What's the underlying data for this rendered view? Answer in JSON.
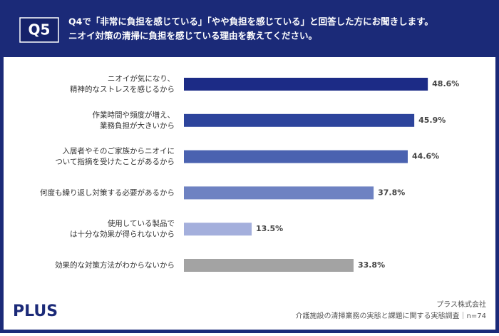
{
  "header": {
    "badge": "Q5",
    "title_lines": [
      "Q4で「非常に負担を感じている」「やや負担を感じている」と回答した方にお聞きします。",
      "ニオイ対策の清掃に負担を感じている理由を教えてください。"
    ]
  },
  "chart_data": {
    "type": "hbar",
    "categories": [
      [
        "ニオイが気になり、",
        "精神的なストレスを感じるから"
      ],
      [
        "作業時間や頻度が増え、",
        "業務負担が大きいから"
      ],
      [
        "入居者やそのご家族からニオイに",
        "ついて指摘を受けたことがあるから"
      ],
      [
        "何度も繰り返し対策する必要があるから"
      ],
      [
        "使用している製品で",
        "は十分な効果が得られないから"
      ],
      [
        "効果的な対策方法がわからないから"
      ]
    ],
    "values": [
      48.6,
      45.9,
      44.6,
      37.8,
      13.5,
      33.8
    ],
    "value_labels": [
      "48.6%",
      "45.9%",
      "44.6%",
      "37.8%",
      "13.5%",
      "33.8%"
    ],
    "colors": [
      "#1c2b86",
      "#2d449c",
      "#4a62b0",
      "#6e82c2",
      "#a4afdc",
      "#a3a3a3"
    ]
  },
  "footer": {
    "logo": "PLUS",
    "company": "プラス株式会社",
    "source": "介護施設の清掃業務の実態と課題に関する実態調査｜n=74"
  }
}
